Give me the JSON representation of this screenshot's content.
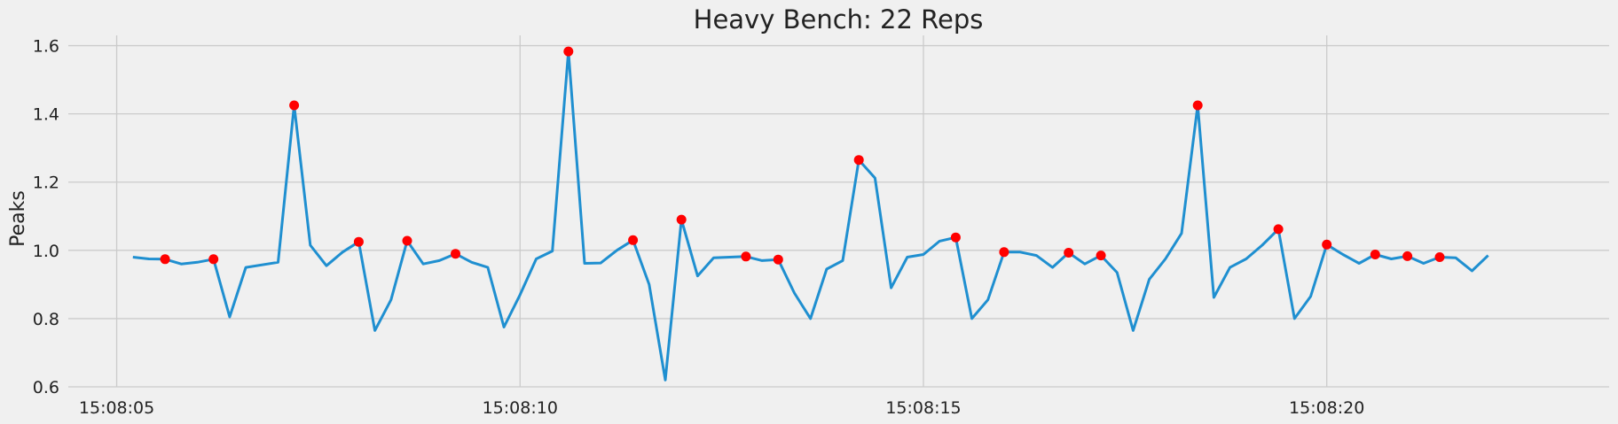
{
  "chart_data": {
    "type": "line",
    "title": "Heavy Bench: 22 Reps",
    "xlabel": "",
    "ylabel": "Peaks",
    "x_unit": "time",
    "xlim": [
      "15:08:04.4",
      "15:08:23.5"
    ],
    "ylim": [
      0.6,
      1.63
    ],
    "x_ticks": [
      "15:08:05",
      "15:08:10",
      "15:08:15",
      "15:08:20"
    ],
    "y_ticks": [
      "0.6",
      "0.8",
      "1.0",
      "1.2",
      "1.4",
      "1.6"
    ],
    "grid": true,
    "colors": {
      "line": "#1f8fd0",
      "peaks": "#ff0000",
      "background": "#f0f0f0",
      "grid": "#cbcbcb"
    },
    "series": [
      {
        "type": "line",
        "points": [
          [
            "15:08:05.2",
            0.98
          ],
          [
            "15:08:05.4",
            0.975
          ],
          [
            "15:08:05.6",
            0.974
          ],
          [
            "15:08:05.8",
            0.96
          ],
          [
            "15:08:06.0",
            0.965
          ],
          [
            "15:08:06.2",
            0.974
          ],
          [
            "15:08:06.4",
            0.805
          ],
          [
            "15:08:06.6",
            0.95
          ],
          [
            "15:08:07.0",
            0.965
          ],
          [
            "15:08:07.2",
            1.425
          ],
          [
            "15:08:07.4",
            1.015
          ],
          [
            "15:08:07.6",
            0.955
          ],
          [
            "15:08:07.8",
            0.995
          ],
          [
            "15:08:08.0",
            1.025
          ],
          [
            "15:08:08.2",
            0.765
          ],
          [
            "15:08:08.4",
            0.855
          ],
          [
            "15:08:08.6",
            1.028
          ],
          [
            "15:08:08.8",
            0.96
          ],
          [
            "15:08:09.0",
            0.97
          ],
          [
            "15:08:09.2",
            0.99
          ],
          [
            "15:08:09.4",
            0.965
          ],
          [
            "15:08:09.6",
            0.95
          ],
          [
            "15:08:09.8",
            0.775
          ],
          [
            "15:08:10.0",
            0.87
          ],
          [
            "15:08:10.2",
            0.975
          ],
          [
            "15:08:10.4",
            0.998
          ],
          [
            "15:08:10.6",
            1.583
          ],
          [
            "15:08:10.8",
            0.962
          ],
          [
            "15:08:11.0",
            0.963
          ],
          [
            "15:08:11.2",
            1.0
          ],
          [
            "15:08:11.4",
            1.03
          ],
          [
            "15:08:11.6",
            0.9
          ],
          [
            "15:08:11.8",
            0.62
          ],
          [
            "15:08:12.0",
            1.09
          ],
          [
            "15:08:12.2",
            0.925
          ],
          [
            "15:08:12.4",
            0.978
          ],
          [
            "15:08:12.8",
            0.982
          ],
          [
            "15:08:13.0",
            0.97
          ],
          [
            "15:08:13.2",
            0.973
          ],
          [
            "15:08:13.4",
            0.875
          ],
          [
            "15:08:13.6",
            0.8
          ],
          [
            "15:08:13.8",
            0.945
          ],
          [
            "15:08:14.0",
            0.97
          ],
          [
            "15:08:14.2",
            1.265
          ],
          [
            "15:08:14.4",
            1.212
          ],
          [
            "15:08:14.6",
            0.89
          ],
          [
            "15:08:14.8",
            0.98
          ],
          [
            "15:08:15.0",
            0.988
          ],
          [
            "15:08:15.2",
            1.027
          ],
          [
            "15:08:15.4",
            1.038
          ],
          [
            "15:08:15.6",
            0.8
          ],
          [
            "15:08:15.8",
            0.855
          ],
          [
            "15:08:16.0",
            0.995
          ],
          [
            "15:08:16.2",
            0.995
          ],
          [
            "15:08:16.4",
            0.985
          ],
          [
            "15:08:16.6",
            0.95
          ],
          [
            "15:08:16.8",
            0.993
          ],
          [
            "15:08:17.0",
            0.96
          ],
          [
            "15:08:17.2",
            0.985
          ],
          [
            "15:08:17.4",
            0.935
          ],
          [
            "15:08:17.6",
            0.765
          ],
          [
            "15:08:17.8",
            0.915
          ],
          [
            "15:08:18.0",
            0.975
          ],
          [
            "15:08:18.2",
            1.05
          ],
          [
            "15:08:18.4",
            1.425
          ],
          [
            "15:08:18.6",
            0.862
          ],
          [
            "15:08:18.8",
            0.95
          ],
          [
            "15:08:19.0",
            0.975
          ],
          [
            "15:08:19.2",
            1.015
          ],
          [
            "15:08:19.4",
            1.062
          ],
          [
            "15:08:19.6",
            0.8
          ],
          [
            "15:08:19.8",
            0.865
          ],
          [
            "15:08:20.0",
            1.017
          ],
          [
            "15:08:20.2",
            0.988
          ],
          [
            "15:08:20.4",
            0.962
          ],
          [
            "15:08:20.6",
            0.988
          ],
          [
            "15:08:20.8",
            0.975
          ],
          [
            "15:08:21.0",
            0.983
          ],
          [
            "15:08:21.2",
            0.962
          ],
          [
            "15:08:21.4",
            0.98
          ],
          [
            "15:08:21.6",
            0.978
          ],
          [
            "15:08:21.8",
            0.94
          ],
          [
            "15:08:22.0",
            0.985
          ]
        ]
      },
      {
        "type": "scatter",
        "points": [
          [
            "15:08:05.6",
            0.974
          ],
          [
            "15:08:06.2",
            0.974
          ],
          [
            "15:08:07.2",
            1.425
          ],
          [
            "15:08:08.0",
            1.025
          ],
          [
            "15:08:08.6",
            1.028
          ],
          [
            "15:08:09.2",
            0.99
          ],
          [
            "15:08:10.6",
            1.583
          ],
          [
            "15:08:11.4",
            1.03
          ],
          [
            "15:08:12.0",
            1.09
          ],
          [
            "15:08:12.8",
            0.982
          ],
          [
            "15:08:13.2",
            0.973
          ],
          [
            "15:08:14.2",
            1.265
          ],
          [
            "15:08:15.4",
            1.038
          ],
          [
            "15:08:16.0",
            0.995
          ],
          [
            "15:08:16.8",
            0.993
          ],
          [
            "15:08:17.2",
            0.985
          ],
          [
            "15:08:18.4",
            1.425
          ],
          [
            "15:08:19.4",
            1.062
          ],
          [
            "15:08:20.0",
            1.017
          ],
          [
            "15:08:20.6",
            0.988
          ],
          [
            "15:08:21.0",
            0.983
          ],
          [
            "15:08:21.4",
            0.98
          ]
        ]
      }
    ]
  }
}
